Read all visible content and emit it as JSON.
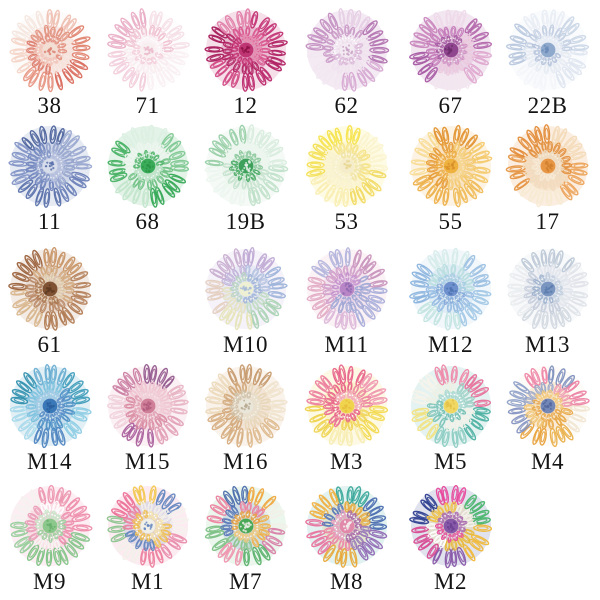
{
  "page": {
    "background": "#ffffff",
    "label_color": "#141414"
  },
  "motifs": [
    {
      "code": "38",
      "row": 0,
      "col": 0,
      "palette": {
        "rot": 200,
        "outer": [
          "#f4e6de",
          "#eec0b2",
          "#e0836f",
          "#d96a5c",
          "#e79381",
          "#f4d4c6"
        ],
        "mid": [
          "#e2927f",
          "#f6e3da",
          "#dc7b6a"
        ],
        "inner": [
          "#e18e7c",
          "#f2c4b6"
        ],
        "core": [
          "#f3ded4",
          "#dd8678"
        ],
        "dots": "#fbf4f0"
      }
    },
    {
      "code": "71",
      "row": 0,
      "col": 1,
      "palette": {
        "rot": 0,
        "outer": [
          "#f9eff2",
          "#f2cddb",
          "#e9adc5",
          "#f5dfe7"
        ],
        "mid": [
          "#f8ecef",
          "#efc2d2"
        ],
        "inner": [
          "#f3ced9",
          "#fbf4f6"
        ],
        "core": [
          "#f8eff1",
          "#eab7c9"
        ],
        "dots": "#ffffff"
      }
    },
    {
      "code": "12",
      "row": 0,
      "col": 2,
      "palette": {
        "rot": 40,
        "outer": [
          "#bc2a6e",
          "#d14884",
          "#a7195a",
          "#e07ca6",
          "#c33274",
          "#b02063"
        ],
        "mid": [
          "#b22162",
          "#d9558e"
        ],
        "inner": [
          "#c22e70",
          "#e789ae"
        ],
        "core": [
          "#c03573",
          "#8e1246"
        ],
        "dots": "#db679b"
      }
    },
    {
      "code": "62",
      "row": 0,
      "col": 3,
      "palette": {
        "rot": 310,
        "outer": [
          "#b273b0",
          "#d6a9d2",
          "#f2e8f1",
          "#c38fc1",
          "#e6cfe4"
        ],
        "mid": [
          "#efe3ee",
          "#c99ac6"
        ],
        "inner": [
          "#dab8d8",
          "#f5eef5"
        ],
        "core": [
          "#f3eaf2",
          "#c9a2c6"
        ],
        "dots": "#ffffff"
      }
    },
    {
      "code": "67",
      "row": 0,
      "col": 4,
      "palette": {
        "rot": 120,
        "outer": [
          "#a75aa3",
          "#c986bd",
          "#eed9e9",
          "#b468ac",
          "#dfa8cf",
          "#f3e7ee"
        ],
        "mid": [
          "#c47ab8",
          "#ecc9dd"
        ],
        "inner": [
          "#a55ba1",
          "#d294c4"
        ],
        "core": [
          "#90468e",
          "#6d2e6d"
        ],
        "dots": "#f5e8f0"
      }
    },
    {
      "code": "22B",
      "row": 0,
      "col": 5,
      "palette": {
        "rot": 0,
        "outer": [
          "#dfe6f0",
          "#f3f5f9",
          "#b9c8de",
          "#e9edf4",
          "#cbd7e7"
        ],
        "mid": [
          "#e6ebf2",
          "#c2cfe2"
        ],
        "inner": [
          "#b4c3da",
          "#e8edf4"
        ],
        "core": [
          "#8ea9cc",
          "#6d8cb8"
        ],
        "dots": "#f7f9fb"
      }
    },
    {
      "code": "11",
      "row": 1,
      "col": 0,
      "palette": {
        "rot": 70,
        "outer": [
          "#5a71ab",
          "#8294c6",
          "#4c639c",
          "#98a6cf",
          "#6a80b8"
        ],
        "mid": [
          "#6f84bd",
          "#93a3cc"
        ],
        "inner": [
          "#8497c6",
          "#b3bedd"
        ],
        "core": [
          "#d7ddeb",
          "#5a71ab"
        ],
        "dots": "#e9ecf4"
      }
    },
    {
      "code": "68",
      "row": 1,
      "col": 1,
      "palette": {
        "rot": 150,
        "outer": [
          "#46b163",
          "#dcefe1",
          "#7fc892",
          "#34a855",
          "#c2e5cb"
        ],
        "mid": [
          "#edf5ef",
          "#6fc184"
        ],
        "inner": [
          "#52b56c",
          "#c0e3c9"
        ],
        "core": [
          "#3aab58",
          "#2a9447"
        ],
        "dots": "#f1f8f3"
      }
    },
    {
      "code": "19B",
      "row": 1,
      "col": 2,
      "palette": {
        "rot": 0,
        "outer": [
          "#bfe0c8",
          "#ecf5ee",
          "#98cfa6",
          "#d8ecdd"
        ],
        "mid": [
          "#c6e2cd",
          "#ecf5ee"
        ],
        "inner": [
          "#49aa64",
          "#8cc89c"
        ],
        "core": [
          "#3da15c",
          "#e8f2ea"
        ],
        "dots": "#eff7f1"
      }
    },
    {
      "code": "53",
      "row": 1,
      "col": 3,
      "palette": {
        "rot": 220,
        "outer": [
          "#f6e34b",
          "#fbf3cd",
          "#f1da63",
          "#f9edb0",
          "#f3df52"
        ],
        "mid": [
          "#f4e387",
          "#faf2d0"
        ],
        "inner": [
          "#f0e3a6",
          "#f8f1d3"
        ],
        "core": [
          "#f4ecca",
          "#e9d893"
        ],
        "dots": "#fdf9ea"
      }
    },
    {
      "code": "55",
      "row": 1,
      "col": 4,
      "palette": {
        "rot": 90,
        "outer": [
          "#edb049",
          "#f8dc95",
          "#e2922f",
          "#f4c96b",
          "#efba56"
        ],
        "mid": [
          "#e79c36",
          "#f3c96e"
        ],
        "inner": [
          "#ecaa3f",
          "#f6d68c"
        ],
        "core": [
          "#efb23f",
          "#d98f2a"
        ],
        "dots": "#fae8bd"
      }
    },
    {
      "code": "17",
      "row": 1,
      "col": 5,
      "palette": {
        "rot": 200,
        "outer": [
          "#e28a36",
          "#f3dab8",
          "#eca45c",
          "#f7ead2",
          "#e59441"
        ],
        "mid": [
          "#e28f3d",
          "#f0dcc0"
        ],
        "inner": [
          "#ecdcc2",
          "#f5ead6"
        ],
        "core": [
          "#e79743",
          "#d07f2e"
        ],
        "dots": "#f7edd9"
      }
    },
    {
      "code": "61",
      "row": 2,
      "col": 0,
      "palette": {
        "rot": 30,
        "outer": [
          "#b07a51",
          "#d8b68c",
          "#9a603a",
          "#c79465",
          "#b5825c"
        ],
        "mid": [
          "#b98a67",
          "#d2a87c"
        ],
        "inner": [
          "#a9754e",
          "#e5d5b8"
        ],
        "core": [
          "#7e5233",
          "#5f3a22"
        ],
        "dots": "#ebdfc7"
      }
    },
    {
      "code": "M10",
      "row": 2,
      "col": 2,
      "palette": {
        "rot": 260,
        "outer": [
          "#bfa9d4",
          "#9fb4da",
          "#a8d2b2",
          "#e6e4b8",
          "#e4cfc0",
          "#c9aed0"
        ],
        "mid": [
          "#b4c2e0",
          "#c2dcc2",
          "#e6e2c0",
          "#c2b2d8"
        ],
        "inner": [
          "#9fb4d8",
          "#b8d4c2"
        ],
        "core": [
          "#eef0d4",
          "#a8bcd8"
        ],
        "dots": "#f5f5e6"
      }
    },
    {
      "code": "M11",
      "row": 2,
      "col": 3,
      "palette": {
        "rot": 130,
        "outer": [
          "#e2abc4",
          "#b2b4dc",
          "#c894bc",
          "#a9aeda",
          "#dcb6d8"
        ],
        "mid": [
          "#d2a0ca",
          "#a2aad6"
        ],
        "inner": [
          "#c490cc",
          "#9aa4d4"
        ],
        "core": [
          "#b886c6",
          "#8f6ab0"
        ],
        "dots": "#ecd5e4"
      }
    },
    {
      "code": "M12",
      "row": 2,
      "col": 4,
      "palette": {
        "rot": 0,
        "outer": [
          "#a2c8e6",
          "#c2e4e0",
          "#8cb4de",
          "#d6ecea",
          "#9cc0e2"
        ],
        "mid": [
          "#96bce2",
          "#b8dede"
        ],
        "inner": [
          "#84a8d8",
          "#a4cce0"
        ],
        "core": [
          "#6e90cc",
          "#4f74b4"
        ],
        "dots": "#e5f1f3"
      }
    },
    {
      "code": "M13",
      "row": 2,
      "col": 5,
      "palette": {
        "rot": 45,
        "outer": [
          "#d2d8e0",
          "#e9ecef",
          "#bcc8d6",
          "#dfe3e9"
        ],
        "mid": [
          "#c6cedb",
          "#e2e6ec"
        ],
        "inner": [
          "#9cb0cc",
          "#c2cede"
        ],
        "core": [
          "#7a96c0",
          "#5c7cae"
        ],
        "dots": "#f1f3f6"
      }
    },
    {
      "code": "M14",
      "row": 3,
      "col": 0,
      "palette": {
        "rot": 300,
        "outer": [
          "#3f9cba",
          "#8ccce4",
          "#4f84c0",
          "#a6d8ea",
          "#2f8fae",
          "#6aaed2"
        ],
        "mid": [
          "#4e90c6",
          "#7cc2de"
        ],
        "inner": [
          "#5a8cc6",
          "#9fcce6"
        ],
        "core": [
          "#3a78b8",
          "#2c5f9e"
        ],
        "dots": "#d0e9f2"
      }
    },
    {
      "code": "M15",
      "row": 3,
      "col": 1,
      "palette": {
        "rot": 20,
        "outer": [
          "#e2a0b6",
          "#aa5f9c",
          "#f0d0da",
          "#ca7da2",
          "#93588e",
          "#e8b4c4"
        ],
        "mid": [
          "#d98ba2",
          "#efc4d0"
        ],
        "inner": [
          "#e0a0b2",
          "#f2d2da"
        ],
        "core": [
          "#d07f98",
          "#b05c7e"
        ],
        "dots": "#f7e5eb"
      }
    },
    {
      "code": "M16",
      "row": 3,
      "col": 2,
      "palette": {
        "rot": 90,
        "outer": [
          "#d6ad80",
          "#ecd9ba",
          "#c69a6e",
          "#f0e3cc",
          "#ddb88c"
        ],
        "mid": [
          "#d2a87a",
          "#e8d6b8"
        ],
        "inner": [
          "#cfc3ac",
          "#e9e0cc"
        ],
        "core": [
          "#e9e6da",
          "#b8ac94"
        ],
        "dots": "#f5f1e5"
      }
    },
    {
      "code": "M3",
      "row": 3,
      "col": 3,
      "palette": {
        "rot": 0,
        "outer": [
          "#f2d94e",
          "#f7ecb0",
          "#eed34e",
          "#ec7f9e",
          "#e8628a",
          "#ef97b0"
        ],
        "mid": [
          "#f0d455",
          "#ea6f93",
          "#e8628a",
          "#ec85a2"
        ],
        "inner": [
          "#e8628a",
          "#f2a8bc"
        ],
        "core": [
          "#f0d44e",
          "#e8bf3e"
        ],
        "dots": "#ffffff"
      }
    },
    {
      "code": "M5",
      "row": 3,
      "col": 4,
      "palette": {
        "rot": 0,
        "outer": [
          "#4cb0a2",
          "#8cccc2",
          "#f1e27e",
          "#f7f3ea",
          "#ee87a8",
          "#e86f9a"
        ],
        "mid": [
          "#f4f1e8",
          "#7cc4b8",
          "#eef0e2",
          "#9cd0c6"
        ],
        "inner": [
          "#74c0b4",
          "#a8d8d0"
        ],
        "core": [
          "#f0d863",
          "#e4c24a"
        ],
        "dots": "#ffffff"
      }
    },
    {
      "code": "M4",
      "row": 3,
      "col": 5,
      "palette": {
        "rot": 0,
        "outer": [
          "#f1e6d2",
          "#eab04a",
          "#e8a23c",
          "#8494c2",
          "#8ea0c8",
          "#ee85a6",
          "#7e90be",
          "#ec82a4"
        ],
        "mid": [
          "#e8a844",
          "#f0c472",
          "#98a6ca",
          "#ee9ab2"
        ],
        "inner": [
          "#e8a84c",
          "#f2c878"
        ],
        "core": [
          "#7488b8",
          "#54689e"
        ],
        "dots": "#f4ecd9"
      }
    },
    {
      "code": "M9",
      "row": 4,
      "col": 0,
      "palette": {
        "rot": 310,
        "outer": [
          "#ee8cab",
          "#84c489",
          "#7cc282",
          "#98ce9c",
          "#f4f2f0",
          "#ec93ae"
        ],
        "mid": [
          "#ec8fae",
          "#f7f5f3",
          "#e89cb6",
          "#ffffff"
        ],
        "inner": [
          "#9ccf9e",
          "#c8e6c8"
        ],
        "core": [
          "#8cc88c",
          "#6ab06e"
        ],
        "dots": "#ffffff"
      }
    },
    {
      "code": "M1",
      "row": 4,
      "col": 1,
      "palette": {
        "rot": 60,
        "outer": [
          "#ec7f9e",
          "#f2f0ea",
          "#8cc48e",
          "#ec6f96",
          "#f2c84e",
          "#6285bf",
          "#f4f2ee",
          "#e88cab"
        ],
        "mid": [
          "#6285bf",
          "#ec7f9e",
          "#f2f0ea",
          "#f0c050"
        ],
        "inner": [
          "#f0c050",
          "#f6e6b0"
        ],
        "core": [
          "#f0efe8",
          "#6888c0"
        ],
        "dots": "#ffffff"
      }
    },
    {
      "code": "M7",
      "row": 4,
      "col": 2,
      "palette": {
        "rot": 140,
        "outer": [
          "#7cc084",
          "#ec7f9e",
          "#4a6cac",
          "#f0a840",
          "#f2f0e8",
          "#d87fa8",
          "#58b06a",
          "#ee93ae"
        ],
        "mid": [
          "#5878b8",
          "#ec7f9e",
          "#f0b048",
          "#8cc48e"
        ],
        "inner": [
          "#e8a040",
          "#f2c878"
        ],
        "core": [
          "#48a858",
          "#eef0e6"
        ],
        "dots": "#f7f5ef"
      }
    },
    {
      "code": "M8",
      "row": 4,
      "col": 3,
      "palette": {
        "rot": 250,
        "outer": [
          "#3aa89a",
          "#4a6cb0",
          "#9068b4",
          "#e8a838",
          "#e8709c",
          "#f0b040"
        ],
        "mid": [
          "#e8a838",
          "#9878b8",
          "#ec85a6",
          "#5878b8"
        ],
        "inner": [
          "#a868a8",
          "#e89cc0"
        ],
        "core": [
          "#e288aa",
          "#f2f0ee"
        ],
        "dots": "#ffffff"
      }
    },
    {
      "code": "M2",
      "row": 4,
      "col": 4,
      "palette": {
        "rot": 180,
        "outer": [
          "#2e3f90",
          "#e8489c",
          "#46b468",
          "#f0b838",
          "#8858a8",
          "#d84890"
        ],
        "mid": [
          "#f0c040",
          "#f4f2ec",
          "#e8b838",
          "#ffffff"
        ],
        "inner": [
          "#a868b0",
          "#e84898"
        ],
        "core": [
          "#8858a8",
          "#6a3f92"
        ],
        "dots": "#f1e9f5"
      }
    }
  ]
}
